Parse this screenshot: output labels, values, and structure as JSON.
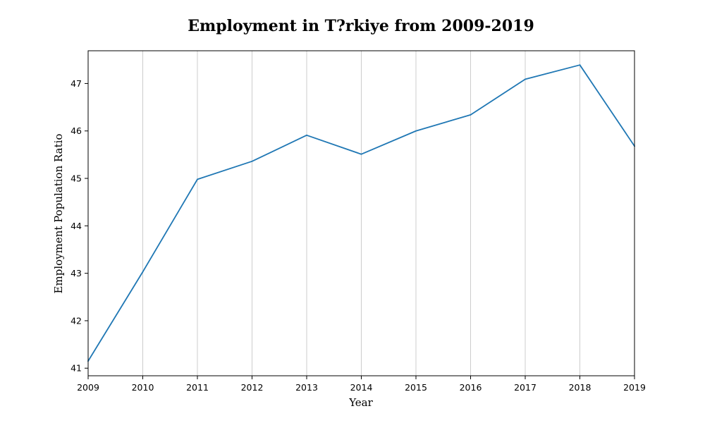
{
  "chart_data": {
    "type": "line",
    "title": "Employment in T?rkiye from 2009-2019",
    "xlabel": "Year",
    "ylabel": "Employment Population Ratio",
    "x": [
      2009,
      2010,
      2011,
      2012,
      2013,
      2014,
      2015,
      2016,
      2017,
      2018,
      2019
    ],
    "xticks": [
      "2009",
      "2010",
      "2011",
      "2012",
      "2013",
      "2014",
      "2015",
      "2016",
      "2017",
      "2018",
      "2019"
    ],
    "yticks": [
      "41",
      "42",
      "43",
      "44",
      "45",
      "46",
      "47"
    ],
    "xlim": [
      2009,
      2019
    ],
    "ylim": [
      40.84,
      47.69
    ],
    "grid": "x-only",
    "series": [
      {
        "color": "#1f77b4",
        "values": [
          41.15,
          43.03,
          44.98,
          45.36,
          45.91,
          45.51,
          46.0,
          46.34,
          47.09,
          47.39,
          45.68
        ]
      }
    ]
  }
}
